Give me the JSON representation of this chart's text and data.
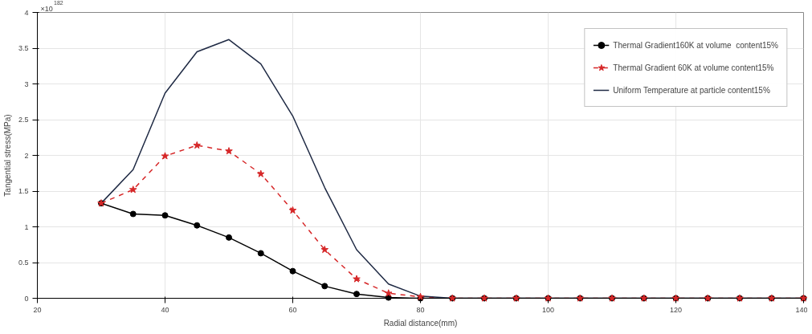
{
  "chart_data": {
    "type": "line",
    "xlabel": "Radial distance(mm)",
    "ylabel": "Tangential stress(MPa)",
    "annotations": [
      "×10$^{182}$"
    ],
    "x": [
      30,
      35,
      40,
      45,
      50,
      55,
      60,
      65,
      70,
      75,
      80,
      85,
      90,
      95,
      100,
      105,
      110,
      115,
      120,
      125,
      130,
      135,
      140
    ],
    "series": [
      {
        "name": "Thermal Gradient160K at volume  content15%",
        "color": "#000000",
        "marker": "circle",
        "line_style": "solid",
        "values": [
          1.33,
          1.18,
          1.16,
          1.02,
          0.85,
          0.63,
          0.38,
          0.17,
          0.06,
          0.01,
          0,
          0,
          0,
          0,
          0,
          0,
          0,
          0,
          0,
          0,
          0,
          0,
          0
        ]
      },
      {
        "name": "Thermal Gradient 60K at volume content15%",
        "color": "#d62728",
        "marker": "star",
        "line_style": "dashed",
        "values": [
          1.33,
          1.52,
          1.99,
          2.14,
          2.06,
          1.74,
          1.23,
          0.68,
          0.27,
          0.07,
          0.02,
          0,
          0,
          0,
          0,
          0,
          0,
          0,
          0,
          0,
          0,
          0,
          0
        ]
      },
      {
        "name": "Uniform Temperature at particle content15%",
        "color": "#1f2a44",
        "marker": "none",
        "line_style": "solid",
        "values": [
          1.33,
          1.8,
          2.87,
          3.45,
          3.62,
          3.28,
          2.55,
          1.55,
          0.68,
          0.2,
          0.03,
          0,
          0,
          0,
          0,
          0,
          0,
          0,
          0,
          0,
          0,
          0,
          0
        ]
      }
    ],
    "xlim": [
      20,
      140
    ],
    "xticks": [
      20,
      40,
      60,
      80,
      100,
      120,
      140
    ],
    "ylim": [
      0,
      4
    ],
    "yticks": [
      0,
      0.5,
      1,
      1.5,
      2,
      2.5,
      3,
      3.5,
      4
    ],
    "grid": true,
    "legend": "top right"
  }
}
